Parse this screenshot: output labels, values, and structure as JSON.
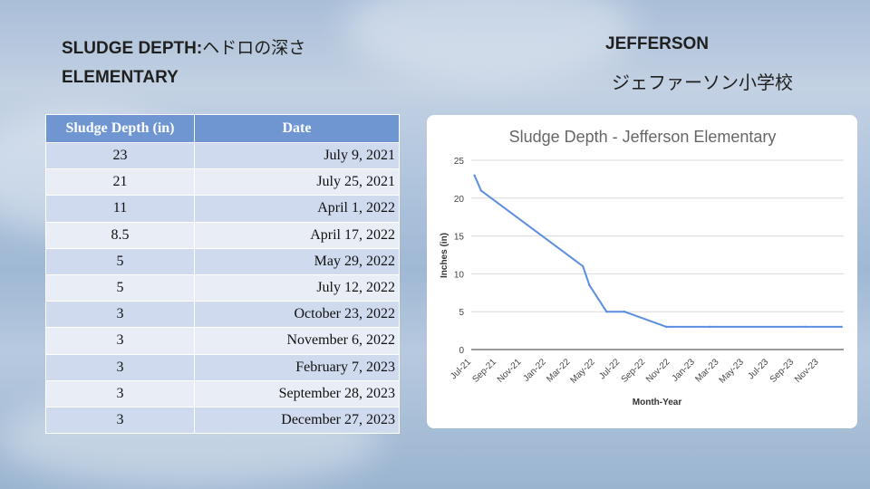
{
  "header": {
    "title_left_line1": "SLUDGE DEPTH:",
    "title_left_line1_jp": "ヘドロの深さ",
    "title_left_line2": "ELEMENTARY",
    "title_right_line1": "JEFFERSON",
    "title_right_line2": "ジェファーソン小学校"
  },
  "table": {
    "headers": [
      "Sludge Depth (in)",
      "Date"
    ],
    "rows": [
      [
        "23",
        "July 9, 2021"
      ],
      [
        "21",
        "July 25, 2021"
      ],
      [
        "11",
        "April 1, 2022"
      ],
      [
        "8.5",
        "April 17, 2022"
      ],
      [
        "5",
        "May 29, 2022"
      ],
      [
        "5",
        "July 12, 2022"
      ],
      [
        "3",
        "October 23, 2022"
      ],
      [
        "3",
        "November 6, 2022"
      ],
      [
        "3",
        "February 7, 2023"
      ],
      [
        "3",
        "September 28, 2023"
      ],
      [
        "3",
        "December 27, 2023"
      ]
    ]
  },
  "chart_data": {
    "type": "line",
    "title": "Sludge Depth - Jefferson Elementary",
    "xlabel": "Month-Year",
    "ylabel": "Inches (in)",
    "ylim": [
      0,
      25
    ],
    "yticks": [
      0,
      5,
      10,
      15,
      20,
      25
    ],
    "xlim": [
      "2021-07-01",
      "2024-01-01"
    ],
    "xticks": [
      {
        "date": "2021-07-01",
        "label": "Jul-21"
      },
      {
        "date": "2021-09-01",
        "label": "Sep-21"
      },
      {
        "date": "2021-11-01",
        "label": "Nov-21"
      },
      {
        "date": "2022-01-01",
        "label": "Jan-22"
      },
      {
        "date": "2022-03-01",
        "label": "Mar-22"
      },
      {
        "date": "2022-05-01",
        "label": "May-22"
      },
      {
        "date": "2022-07-01",
        "label": "Jul-22"
      },
      {
        "date": "2022-09-01",
        "label": "Sep-22"
      },
      {
        "date": "2022-11-01",
        "label": "Nov-22"
      },
      {
        "date": "2023-01-01",
        "label": "Jan-23"
      },
      {
        "date": "2023-03-01",
        "label": "Mar-23"
      },
      {
        "date": "2023-05-01",
        "label": "May-23"
      },
      {
        "date": "2023-07-01",
        "label": "Jul-23"
      },
      {
        "date": "2023-09-01",
        "label": "Sep-23"
      },
      {
        "date": "2023-11-01",
        "label": "Nov-23"
      }
    ],
    "grid": true,
    "series": [
      {
        "color": "#5b8ee0",
        "points": [
          {
            "x": "2021-07-09",
            "y": 23
          },
          {
            "x": "2021-07-25",
            "y": 21
          },
          {
            "x": "2022-04-01",
            "y": 11
          },
          {
            "x": "2022-04-17",
            "y": 8.5
          },
          {
            "x": "2022-05-29",
            "y": 5
          },
          {
            "x": "2022-07-12",
            "y": 5
          },
          {
            "x": "2022-10-23",
            "y": 3
          },
          {
            "x": "2022-11-06",
            "y": 3
          },
          {
            "x": "2023-02-07",
            "y": 3
          },
          {
            "x": "2023-09-28",
            "y": 3
          },
          {
            "x": "2023-12-27",
            "y": 3
          }
        ]
      }
    ]
  }
}
